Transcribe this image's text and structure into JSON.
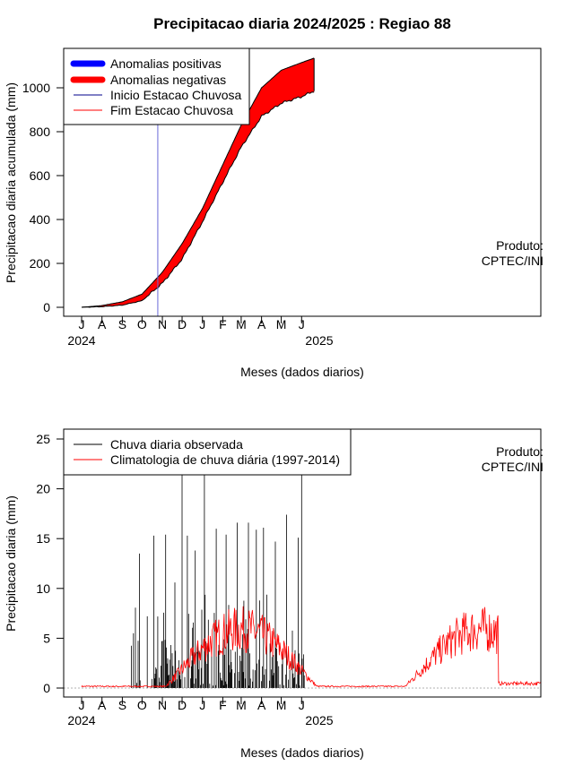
{
  "chart_data": [
    {
      "type": "area",
      "title": "Precipitacao diaria 2024/2025 : Regiao 88",
      "xlabel": "Meses (dados diarios)",
      "ylabel": "Precipitacao diaria acumulada (mm)",
      "x_tick_labels": [
        "J",
        "A",
        "S",
        "O",
        "N",
        "D",
        "J",
        "F",
        "M",
        "A",
        "M",
        "J"
      ],
      "year_labels": [
        "2024",
        "2025"
      ],
      "y_ticks": [
        "0",
        "200",
        "400",
        "600",
        "800",
        "1000"
      ],
      "ylim": [
        0,
        1150
      ],
      "product_note": [
        "Produto:",
        "CPTEC/INI"
      ],
      "legend": {
        "placement": "top-left",
        "items": [
          {
            "label": "Anomalias positivas",
            "color": "#0000ff",
            "style": "thick"
          },
          {
            "label": "Anomalias negativas",
            "color": "#ff0000",
            "style": "thick"
          },
          {
            "label": "Inicio Estacao Chuvosa",
            "color": "#00008b",
            "style": "thin"
          },
          {
            "label": "Fim Estacao Chuvosa",
            "color": "#ff0000",
            "style": "thin"
          }
        ]
      },
      "rainy_season_start": "2024-10-25",
      "x": [
        "2024-07-01",
        "2024-08-01",
        "2024-09-01",
        "2024-10-01",
        "2024-11-01",
        "2024-12-01",
        "2025-01-01",
        "2025-02-01",
        "2025-03-01",
        "2025-04-01",
        "2025-05-01",
        "2025-06-01",
        "2025-06-20"
      ],
      "series": [
        {
          "name": "Climatologia",
          "values": [
            0,
            8,
            25,
            60,
            160,
            290,
            450,
            650,
            830,
            1000,
            1080,
            1115,
            1135
          ]
        },
        {
          "name": "Observada",
          "values": [
            0,
            3,
            10,
            30,
            110,
            220,
            390,
            570,
            730,
            870,
            930,
            960,
            985
          ]
        }
      ]
    },
    {
      "type": "line",
      "xlabel": "Meses (dados diarios)",
      "ylabel": "Precipitacao diaria (mm)",
      "x_tick_labels": [
        "J",
        "A",
        "S",
        "O",
        "N",
        "D",
        "J",
        "F",
        "M",
        "A",
        "M",
        "J"
      ],
      "year_labels": [
        "2024",
        "2025"
      ],
      "y_ticks": [
        "0",
        "5",
        "10",
        "15",
        "20",
        "25"
      ],
      "ylim": [
        0,
        26
      ],
      "product_note": [
        "Produto:",
        "CPTEC/INI"
      ],
      "legend": {
        "placement": "top-left",
        "items": [
          {
            "label": "Chuva diaria observada",
            "color": "#000000"
          },
          {
            "label": "Climatologia de chuva diária (1997-2014)",
            "color": "#ff0000"
          }
        ]
      },
      "observed_peaks": [
        {
          "x": "2024-09-27",
          "y": 13.5
        },
        {
          "x": "2024-10-09",
          "y": 7.2
        },
        {
          "x": "2024-10-19",
          "y": 15.3
        },
        {
          "x": "2024-11-06",
          "y": 15.4
        },
        {
          "x": "2024-11-20",
          "y": 10.6
        },
        {
          "x": "2024-12-01",
          "y": 21.5
        },
        {
          "x": "2024-12-09",
          "y": 15.3
        },
        {
          "x": "2024-12-21",
          "y": 13.8
        },
        {
          "x": "2025-01-04",
          "y": 21.8
        },
        {
          "x": "2025-01-22",
          "y": 16.0
        },
        {
          "x": "2025-02-06",
          "y": 15.4
        },
        {
          "x": "2025-02-23",
          "y": 16.6
        },
        {
          "x": "2025-03-12",
          "y": 16.6
        },
        {
          "x": "2025-03-24",
          "y": 15.9
        },
        {
          "x": "2025-04-04",
          "y": 16.1
        },
        {
          "x": "2025-04-22",
          "y": 14.7
        },
        {
          "x": "2025-05-09",
          "y": 17.4
        },
        {
          "x": "2025-05-27",
          "y": 15.1
        },
        {
          "x": "2025-06-01",
          "y": 23.0
        }
      ]
    }
  ]
}
